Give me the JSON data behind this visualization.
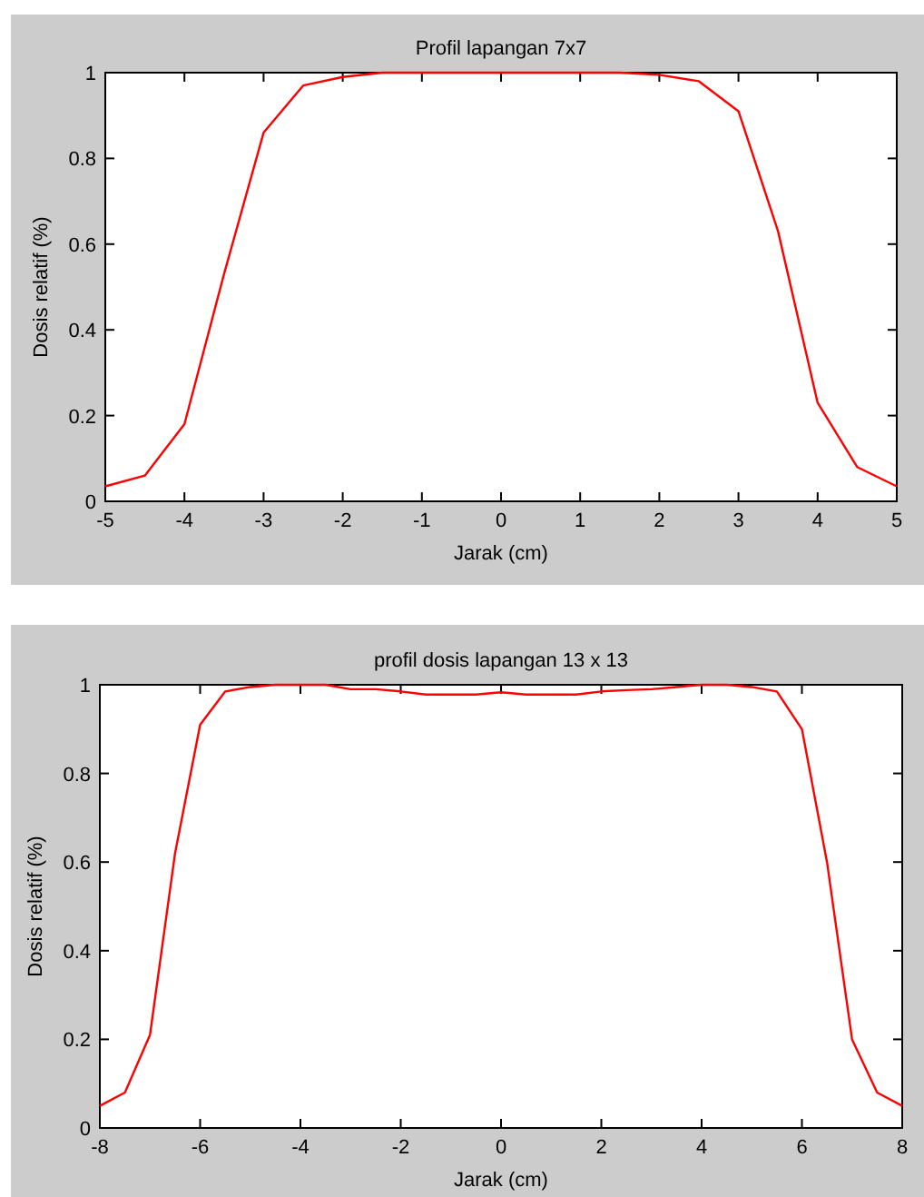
{
  "chart_data": [
    {
      "type": "line",
      "title": "Profil lapangan 7x7",
      "xlabel": "Jarak (cm)",
      "ylabel": "Dosis relatif (%)",
      "x": [
        -5,
        -4.5,
        -4,
        -3.5,
        -3,
        -2.5,
        -2,
        -1.5,
        -1,
        -0.5,
        0,
        0.5,
        1,
        1.5,
        2,
        2.5,
        3,
        3.5,
        4,
        4.5,
        5
      ],
      "series": [
        {
          "color": "#ff0000",
          "values": [
            0.035,
            0.06,
            0.18,
            0.53,
            0.86,
            0.97,
            0.99,
            1.0,
            1.0,
            1.0,
            1.0,
            1.0,
            1.0,
            1.0,
            0.995,
            0.98,
            0.91,
            0.63,
            0.23,
            0.08,
            0.035
          ]
        }
      ],
      "xlim": [
        -5,
        5
      ],
      "xticks": [
        -5,
        -4,
        -3,
        -2,
        -1,
        0,
        1,
        2,
        3,
        4,
        5
      ],
      "ylim": [
        0,
        1
      ],
      "yticks": [
        0,
        0.2,
        0.4,
        0.6,
        0.8,
        1
      ],
      "grid": false,
      "marker": "none",
      "line_style": "solid"
    },
    {
      "type": "line",
      "title": "profil dosis lapangan 13 x 13",
      "xlabel": "Jarak (cm)",
      "ylabel": "Dosis relatif (%)",
      "x": [
        -8,
        -7.5,
        -7,
        -6.5,
        -6,
        -5.5,
        -5,
        -4.5,
        -4,
        -3.5,
        -3,
        -2.5,
        -2,
        -1.5,
        -1,
        -0.5,
        0,
        0.5,
        1,
        1.5,
        2,
        2.5,
        3,
        3.5,
        4,
        4.5,
        5,
        5.5,
        6,
        6.5,
        7,
        7.5,
        8
      ],
      "series": [
        {
          "color": "#ff0000",
          "values": [
            0.05,
            0.08,
            0.21,
            0.62,
            0.91,
            0.985,
            0.995,
            1.0,
            1.0,
            1.0,
            0.99,
            0.99,
            0.985,
            0.978,
            0.978,
            0.978,
            0.983,
            0.978,
            0.978,
            0.978,
            0.985,
            0.988,
            0.99,
            0.995,
            1.0,
            1.0,
            0.995,
            0.985,
            0.9,
            0.6,
            0.2,
            0.08,
            0.05
          ]
        }
      ],
      "xlim": [
        -8,
        8
      ],
      "xticks": [
        -8,
        -6,
        -4,
        -2,
        0,
        2,
        4,
        6,
        8
      ],
      "ylim": [
        0,
        1
      ],
      "yticks": [
        0,
        0.2,
        0.4,
        0.6,
        0.8,
        1
      ],
      "grid": false,
      "marker": "none",
      "line_style": "solid"
    }
  ]
}
